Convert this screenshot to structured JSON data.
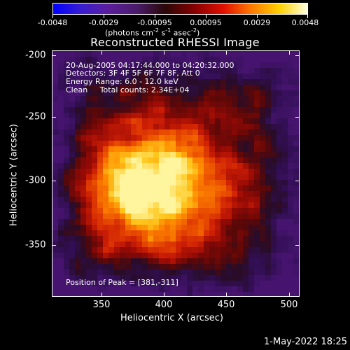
{
  "colorbar": {
    "ticks": [
      "-0.0048",
      "-0.0029",
      "-0.00095",
      "0.00095",
      "0.0029",
      "0.0048"
    ],
    "units": {
      "prefix": "(photons cm",
      "exp1": "-2",
      "mid1": " s",
      "exp2": "-1",
      "mid2": " asec",
      "exp3": "-2",
      "suffix": ")"
    },
    "colors": [
      "#0000ff",
      "#3a1dd0",
      "#5c1e9a",
      "#4a1c6a",
      "#2a0808",
      "#8a0000",
      "#e01000",
      "#ff7a00",
      "#ffd000",
      "#ffffe0"
    ]
  },
  "title": "Reconstructed RHESSI Image",
  "info": {
    "time_range": "20-Aug-2005 04:17:44.000 to 04:20:32.000",
    "detectors": "Detectors: 3F 4F 5F 6F 7F 8F, Att 0",
    "energy": "Energy Range: 6.0 - 12.0 keV",
    "clean": "Clean     Total counts: 2.34E+04",
    "peak": "Position of Peak = [381,-311]"
  },
  "axes": {
    "x_title": "Heliocentric X (arcsec)",
    "y_title": "Heliocentric Y (arcsec)",
    "x_ticks": [
      "350",
      "400",
      "450",
      "500"
    ],
    "y_ticks": [
      "-200",
      "-250",
      "-300",
      "-350"
    ]
  },
  "timestamp": "1-May-2022 18:25"
}
